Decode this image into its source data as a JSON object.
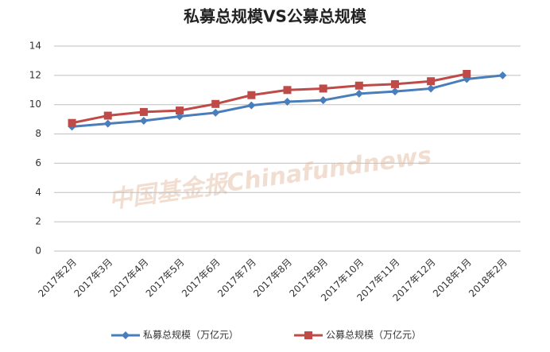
{
  "chart_data": {
    "type": "line",
    "title": "私募总规模VS公募总规模",
    "watermark": "中国基金报Chinafundnews",
    "categories": [
      "2017年2月",
      "2017年3月",
      "2017年4月",
      "2017年5月",
      "2017年6月",
      "2017年7月",
      "2017年8月",
      "2017年9月",
      "2017年10月",
      "2017年11月",
      "2017年12月",
      "2018年1月",
      "2018年2月"
    ],
    "series": [
      {
        "name": "私募总规模（万亿元）",
        "color": "#4a7ebb",
        "marker": "diamond",
        "values": [
          8.5,
          8.7,
          8.9,
          9.2,
          9.45,
          9.95,
          10.2,
          10.3,
          10.75,
          10.9,
          11.1,
          11.75,
          12.0
        ]
      },
      {
        "name": "公募总规模（万亿元）",
        "color": "#be4b48",
        "marker": "square",
        "values": [
          8.75,
          9.25,
          9.5,
          9.6,
          10.05,
          10.65,
          11.0,
          11.1,
          11.3,
          11.4,
          11.6,
          12.1,
          null
        ]
      }
    ],
    "ylim": [
      0,
      14
    ],
    "yticks": [
      0,
      2,
      4,
      6,
      8,
      10,
      12,
      14
    ],
    "grid": true,
    "legend": "bottom"
  }
}
